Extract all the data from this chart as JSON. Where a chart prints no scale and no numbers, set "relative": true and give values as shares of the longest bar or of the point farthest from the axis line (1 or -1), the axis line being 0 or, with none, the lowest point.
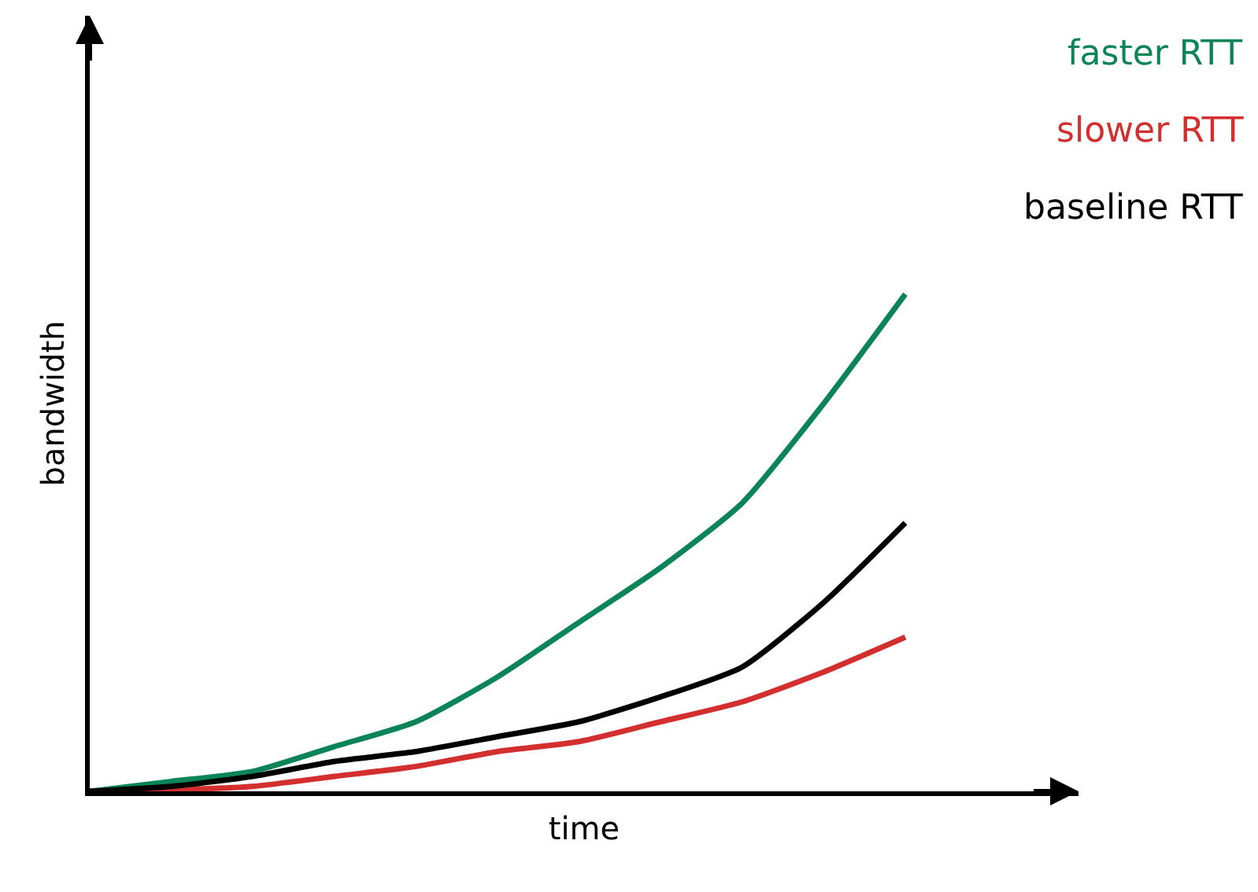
{
  "chart_data": {
    "type": "line",
    "relative": true,
    "xlabel": "time",
    "ylabel": "bandwidth",
    "legend": "top right",
    "marker": "none",
    "line_style": "solid",
    "categories": [
      null,
      null,
      null,
      null,
      null,
      null,
      null,
      null,
      null,
      null,
      null
    ],
    "series": [
      {
        "name": "faster RTT",
        "color": "#0b8457",
        "values": [
          0,
          0.02,
          0.04,
          0.09,
          0.14,
          0.23,
          0.34,
          0.45,
          0.58,
          0.78,
          1
        ]
      },
      {
        "name": "slower RTT",
        "color": "#d32f2f",
        "values": [
          0,
          0.003,
          0.01,
          0.03,
          0.05,
          0.08,
          0.1,
          0.14,
          0.18,
          0.24,
          0.31
        ]
      },
      {
        "name": "baseline RTT",
        "color": "#000000",
        "values": [
          0,
          0.01,
          0.03,
          0.06,
          0.08,
          0.11,
          0.14,
          0.19,
          0.25,
          0.38,
          0.54
        ]
      }
    ]
  }
}
